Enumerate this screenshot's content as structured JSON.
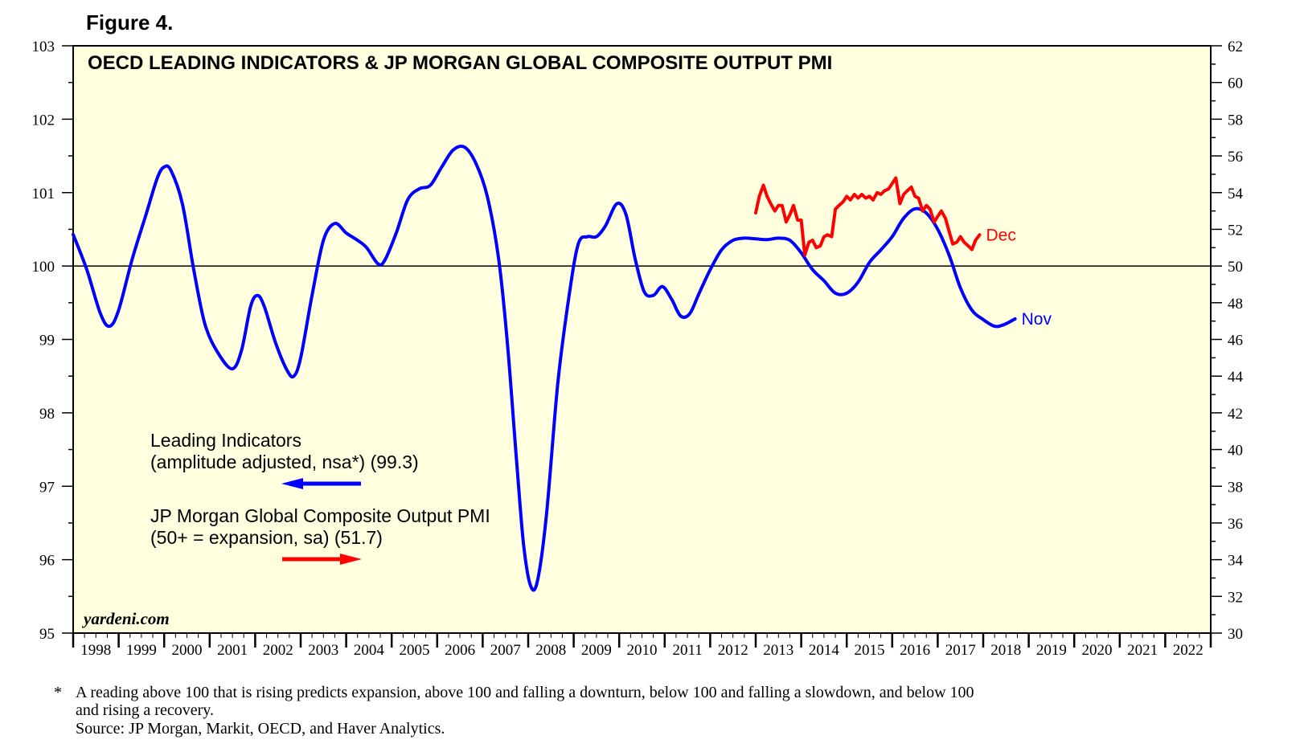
{
  "figure_label": "Figure 4.",
  "chart_data": {
    "type": "line",
    "title": "OECD LEADING INDICATORS & JP MORGAN GLOBAL COMPOSITE OUTPUT PMI",
    "watermark": "yardeni.com",
    "x_range": [
      1998,
      2023
    ],
    "x_tick_labels": [
      "1998",
      "1999",
      "2000",
      "2001",
      "2002",
      "2003",
      "2004",
      "2005",
      "2006",
      "2007",
      "2008",
      "2009",
      "2010",
      "2011",
      "2012",
      "2013",
      "2014",
      "2015",
      "2016",
      "2017",
      "2018",
      "2019",
      "2020",
      "2021",
      "2022"
    ],
    "y_left": {
      "range": [
        95,
        103
      ],
      "ticks": [
        95,
        96,
        97,
        98,
        99,
        100,
        101,
        102,
        103
      ]
    },
    "y_right": {
      "range": [
        30,
        62
      ],
      "ticks": [
        30,
        32,
        34,
        36,
        38,
        40,
        42,
        44,
        46,
        48,
        50,
        52,
        54,
        56,
        58,
        60,
        62
      ]
    },
    "reference_line": {
      "axis": "left",
      "value": 100
    },
    "background_color": "#ffffe0",
    "series": [
      {
        "name": "Leading Indicators",
        "axis": "left",
        "color": "#0000ff",
        "end_label": "Nov",
        "legend_line1": "Leading Indicators",
        "legend_line2": "(amplitude adjusted, nsa*) (99.3)",
        "legend_arrow": "left",
        "points": [
          [
            1998.0,
            100.43
          ],
          [
            1998.3,
            99.95
          ],
          [
            1998.6,
            99.35
          ],
          [
            1998.8,
            99.18
          ],
          [
            1999.0,
            99.4
          ],
          [
            1999.3,
            100.1
          ],
          [
            1999.6,
            100.7
          ],
          [
            1999.85,
            101.2
          ],
          [
            2000.0,
            101.35
          ],
          [
            2000.15,
            101.3
          ],
          [
            2000.4,
            100.85
          ],
          [
            2000.65,
            99.95
          ],
          [
            2000.9,
            99.2
          ],
          [
            2001.2,
            98.8
          ],
          [
            2001.5,
            98.6
          ],
          [
            2001.7,
            98.85
          ],
          [
            2001.9,
            99.45
          ],
          [
            2002.05,
            99.6
          ],
          [
            2002.2,
            99.45
          ],
          [
            2002.45,
            98.95
          ],
          [
            2002.7,
            98.58
          ],
          [
            2002.85,
            98.5
          ],
          [
            2003.0,
            98.75
          ],
          [
            2003.25,
            99.6
          ],
          [
            2003.5,
            100.35
          ],
          [
            2003.75,
            100.58
          ],
          [
            2004.0,
            100.45
          ],
          [
            2004.25,
            100.35
          ],
          [
            2004.45,
            100.25
          ],
          [
            2004.7,
            100.03
          ],
          [
            2004.85,
            100.08
          ],
          [
            2005.1,
            100.45
          ],
          [
            2005.35,
            100.9
          ],
          [
            2005.6,
            101.05
          ],
          [
            2005.85,
            101.1
          ],
          [
            2006.1,
            101.35
          ],
          [
            2006.35,
            101.58
          ],
          [
            2006.6,
            101.62
          ],
          [
            2006.85,
            101.4
          ],
          [
            2007.1,
            100.95
          ],
          [
            2007.35,
            100.1
          ],
          [
            2007.55,
            98.9
          ],
          [
            2007.75,
            97.3
          ],
          [
            2007.9,
            96.2
          ],
          [
            2008.05,
            95.65
          ],
          [
            2008.2,
            95.7
          ],
          [
            2008.4,
            96.6
          ],
          [
            2008.65,
            98.4
          ],
          [
            2008.9,
            99.6
          ],
          [
            2009.1,
            100.3
          ],
          [
            2009.3,
            100.4
          ],
          [
            2009.5,
            100.4
          ],
          [
            2009.7,
            100.55
          ],
          [
            2009.95,
            100.85
          ],
          [
            2010.15,
            100.7
          ],
          [
            2010.35,
            100.1
          ],
          [
            2010.55,
            99.65
          ],
          [
            2010.75,
            99.6
          ],
          [
            2010.95,
            99.72
          ],
          [
            2011.15,
            99.55
          ],
          [
            2011.35,
            99.32
          ],
          [
            2011.55,
            99.35
          ],
          [
            2011.75,
            99.62
          ],
          [
            2012.0,
            99.95
          ],
          [
            2012.25,
            100.22
          ],
          [
            2012.5,
            100.35
          ],
          [
            2012.75,
            100.38
          ],
          [
            2013.0,
            100.37
          ],
          [
            2013.25,
            100.36
          ],
          [
            2013.5,
            100.38
          ],
          [
            2013.75,
            100.35
          ],
          [
            2014.0,
            100.18
          ],
          [
            2014.25,
            99.95
          ],
          [
            2014.5,
            99.8
          ],
          [
            2014.75,
            99.63
          ],
          [
            2015.0,
            99.63
          ],
          [
            2015.25,
            99.78
          ],
          [
            2015.5,
            100.05
          ],
          [
            2015.75,
            100.22
          ],
          [
            2016.0,
            100.4
          ],
          [
            2016.25,
            100.65
          ],
          [
            2016.5,
            100.78
          ],
          [
            2016.75,
            100.72
          ],
          [
            2017.0,
            100.5
          ],
          [
            2017.25,
            100.15
          ],
          [
            2017.5,
            99.7
          ],
          [
            2017.75,
            99.4
          ],
          [
            2018.0,
            99.27
          ],
          [
            2018.25,
            99.18
          ],
          [
            2018.45,
            99.2
          ],
          [
            2018.7,
            99.28
          ]
        ]
      },
      {
        "name": "JP Morgan Global Composite Output PMI",
        "axis": "right",
        "color": "#ff0000",
        "end_label": "Dec",
        "legend_line1": "JP Morgan Global Composite Output PMI",
        "legend_line2": "(50+ = expansion, sa) (51.7)",
        "legend_arrow": "right",
        "points": [
          [
            2013.0,
            52.9
          ],
          [
            2013.08,
            53.8
          ],
          [
            2013.17,
            54.4
          ],
          [
            2013.25,
            53.8
          ],
          [
            2013.33,
            53.4
          ],
          [
            2013.42,
            53.0
          ],
          [
            2013.5,
            53.3
          ],
          [
            2013.58,
            53.3
          ],
          [
            2013.67,
            52.4
          ],
          [
            2013.75,
            52.8
          ],
          [
            2013.83,
            53.3
          ],
          [
            2013.92,
            52.5
          ],
          [
            2014.0,
            52.5
          ],
          [
            2014.08,
            50.6
          ],
          [
            2014.17,
            51.3
          ],
          [
            2014.25,
            51.4
          ],
          [
            2014.33,
            51.0
          ],
          [
            2014.42,
            51.1
          ],
          [
            2014.5,
            51.6
          ],
          [
            2014.58,
            51.7
          ],
          [
            2014.67,
            51.6
          ],
          [
            2014.75,
            53.1
          ],
          [
            2014.83,
            53.3
          ],
          [
            2014.92,
            53.5
          ],
          [
            2015.0,
            53.8
          ],
          [
            2015.08,
            53.6
          ],
          [
            2015.17,
            53.9
          ],
          [
            2015.25,
            53.7
          ],
          [
            2015.33,
            53.9
          ],
          [
            2015.42,
            53.7
          ],
          [
            2015.5,
            53.8
          ],
          [
            2015.58,
            53.6
          ],
          [
            2015.67,
            54.0
          ],
          [
            2015.75,
            53.9
          ],
          [
            2015.83,
            54.1
          ],
          [
            2015.92,
            54.2
          ],
          [
            2016.0,
            54.5
          ],
          [
            2016.08,
            54.8
          ],
          [
            2016.17,
            53.4
          ],
          [
            2016.25,
            53.9
          ],
          [
            2016.33,
            54.1
          ],
          [
            2016.42,
            54.3
          ],
          [
            2016.5,
            53.8
          ],
          [
            2016.58,
            53.7
          ],
          [
            2016.67,
            53.0
          ],
          [
            2016.75,
            53.3
          ],
          [
            2016.83,
            53.1
          ],
          [
            2016.92,
            52.4
          ],
          [
            2017.0,
            52.7
          ],
          [
            2017.08,
            53.0
          ],
          [
            2017.17,
            52.6
          ],
          [
            2017.25,
            51.9
          ],
          [
            2017.33,
            51.2
          ],
          [
            2017.42,
            51.3
          ],
          [
            2017.5,
            51.6
          ],
          [
            2017.58,
            51.3
          ],
          [
            2017.67,
            51.1
          ],
          [
            2017.75,
            50.9
          ],
          [
            2017.83,
            51.4
          ],
          [
            2017.92,
            51.7
          ]
        ]
      }
    ]
  },
  "footnote": {
    "marker": "*",
    "line1": "A reading above 100 that is rising predicts expansion, above 100 and falling a downturn, below 100 and falling a slowdown, and below 100",
    "line2": "and rising a recovery.",
    "source": "Source: JP Morgan, Markit, OECD, and Haver Analytics."
  }
}
